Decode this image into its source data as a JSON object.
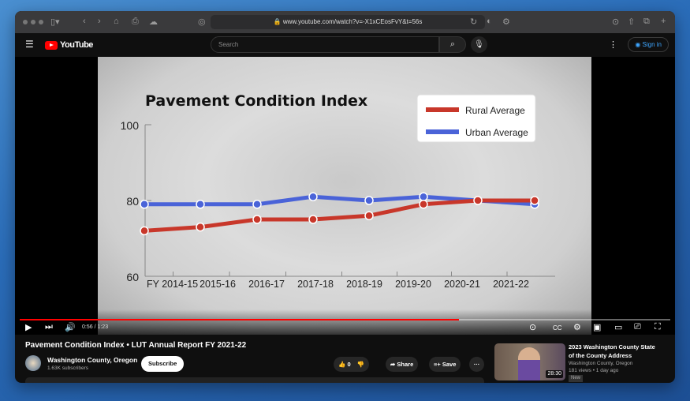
{
  "browser": {
    "url": "www.youtube.com/watch?v=-X1xCEosFvY&t=56s"
  },
  "youtube": {
    "search_placeholder": "Search",
    "sign_in": "Sign in",
    "logo_text": "YouTube"
  },
  "player": {
    "time": "0:56 / 1:23",
    "progress_fraction": 0.675,
    "progress_color": "#ff0000"
  },
  "chart_data": {
    "type": "line",
    "title": "Pavement Condition Index",
    "categories": [
      "FY 2014-15",
      "2015-16",
      "2016-17",
      "2017-18",
      "2018-19",
      "2019-20",
      "2020-21",
      "2021-22"
    ],
    "yticks": [
      "100",
      "80",
      "60"
    ],
    "ylim": [
      60,
      100
    ],
    "legend_placement": "top-right",
    "series": [
      {
        "name": "Rural Average",
        "color": "#c8372a",
        "values": [
          72,
          73,
          75,
          75,
          76,
          79,
          80,
          80
        ]
      },
      {
        "name": "Urban Average",
        "color": "#4a63d8",
        "values": [
          79,
          79,
          79,
          81,
          80,
          81,
          80,
          79
        ]
      }
    ]
  },
  "video": {
    "title": "Pavement Condition Index • LUT Annual Report FY 2021-22",
    "channel": "Washington County, Oregon",
    "subscribers": "1.63K subscribers",
    "subscribe": "Subscribe",
    "likes": "0",
    "share": "Share",
    "save": "Save"
  },
  "related": {
    "title_line1": "2023 Washington County State",
    "title_line2": "of the County Address",
    "channel": "Washington County, Oregon",
    "meta": "181 views • 1 day ago",
    "duration": "28:30",
    "badge": "New"
  }
}
